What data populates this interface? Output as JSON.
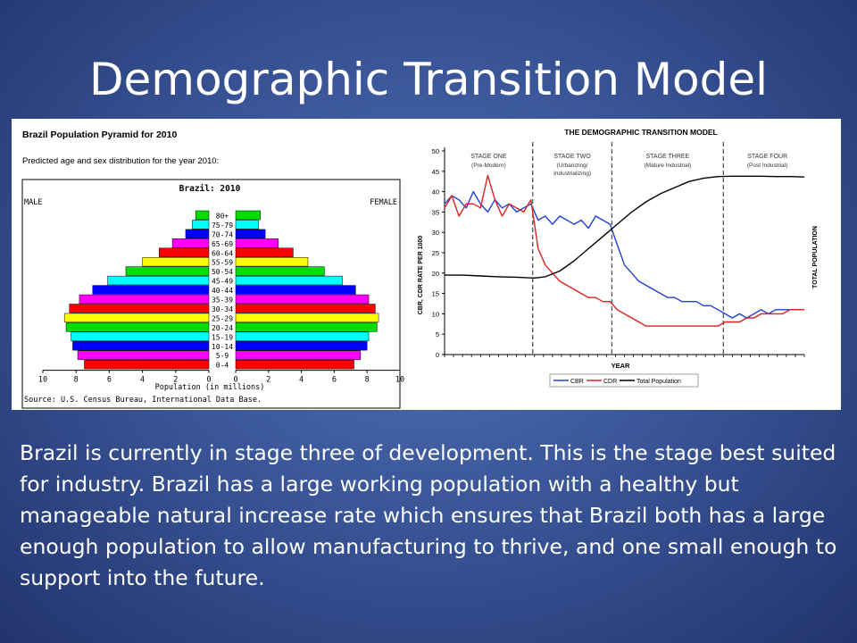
{
  "slide": {
    "title": "Demographic Transition Model",
    "body": "Brazil is currently in stage three of development. This is the stage best suited for industry. Brazil has a large working population with a healthy but manageable natural increase rate which ensures that Brazil both has a large enough population to allow manufacturing to thrive, and one small enough to support into the future."
  },
  "colors": {
    "cbr": "#2040d0",
    "cdr": "#e02020",
    "total": "#000000"
  },
  "chart_data": [
    {
      "type": "bar",
      "title": "Brazil Population Pyramid for 2010",
      "subtitle": "Predicted age and sex distribution for the year 2010:",
      "inner_title": "Brazil: 2010",
      "left_label": "MALE",
      "right_label": "FEMALE",
      "xlabel": "Population (in millions)",
      "source": "Source: U.S. Census Bureau, International Data Base.",
      "xlim": [
        0,
        10
      ],
      "ticks": [
        "10",
        "8",
        "6",
        "4",
        "2",
        "0",
        "0",
        "2",
        "4",
        "6",
        "8",
        "10"
      ],
      "categories": [
        "80+",
        "75-79",
        "70-74",
        "65-69",
        "60-64",
        "55-59",
        "50-54",
        "45-49",
        "40-44",
        "35-39",
        "30-34",
        "25-29",
        "20-24",
        "15-19",
        "10-14",
        "5-9",
        "0-4"
      ],
      "bar_colors": [
        "#00dd00",
        "#00ffff",
        "#0000ff",
        "#ff00ff",
        "#ff0000",
        "#ffff00",
        "#00dd00",
        "#00ffff",
        "#0000ff",
        "#ff00ff",
        "#ff0000",
        "#ffff00",
        "#00dd00",
        "#00ffff",
        "#0000ff",
        "#ff00ff",
        "#ff0000"
      ],
      "series": [
        {
          "name": "MALE",
          "values": [
            0.8,
            1.0,
            1.4,
            2.2,
            3.0,
            4.0,
            5.0,
            6.1,
            7.0,
            7.8,
            8.4,
            8.7,
            8.6,
            8.3,
            8.2,
            7.9,
            7.5
          ]
        },
        {
          "name": "FEMALE",
          "values": [
            1.5,
            1.4,
            1.8,
            2.6,
            3.5,
            4.4,
            5.4,
            6.5,
            7.3,
            8.1,
            8.5,
            8.7,
            8.6,
            8.1,
            8.0,
            7.6,
            7.2
          ]
        }
      ]
    },
    {
      "type": "line",
      "title": "THE DEMOGRAPHIC TRANSITION MODEL",
      "xlabel": "YEAR",
      "ylabel": "CBR, CDR RATE PER 1000",
      "ylabel_right": "TOTAL POPULATION",
      "ylim": [
        0,
        50
      ],
      "yticks": [
        0,
        5,
        10,
        15,
        20,
        25,
        30,
        35,
        40,
        45,
        50
      ],
      "x_range": [
        0,
        100
      ],
      "stage_boundaries": [
        24.5,
        46.5,
        77.5
      ],
      "stages": [
        {
          "name": "STAGE ONE",
          "desc": [
            "(Pre-Modern)"
          ]
        },
        {
          "name": "STAGE TWO",
          "desc": [
            "(Urbanizing/",
            "Industrializing)"
          ]
        },
        {
          "name": "STAGE THREE",
          "desc": [
            "(Mature Industrial)"
          ]
        },
        {
          "name": "STAGE FOUR",
          "desc": [
            "(Post Industrial)"
          ]
        }
      ],
      "legend": [
        "CBR",
        "CDR",
        "Total Population"
      ],
      "series": [
        {
          "name": "CBR",
          "x": [
            0,
            2,
            4,
            6,
            8,
            10,
            12,
            14,
            16,
            18,
            20,
            22,
            24,
            26,
            28,
            30,
            32,
            34,
            36,
            38,
            40,
            42,
            44,
            46,
            48,
            50,
            52,
            54,
            56,
            58,
            60,
            62,
            64,
            66,
            68,
            70,
            72,
            74,
            76,
            78,
            80,
            82,
            84,
            86,
            88,
            90,
            92,
            94,
            96,
            98,
            100
          ],
          "y": [
            37,
            39,
            38,
            36,
            40,
            37,
            35,
            38,
            36,
            37,
            35,
            36,
            37,
            33,
            34,
            32,
            34,
            33,
            32,
            33,
            31,
            34,
            33,
            32,
            27,
            22,
            20,
            18,
            17,
            16,
            15,
            14,
            14,
            13,
            13,
            13,
            12,
            12,
            11,
            10,
            9,
            10,
            9,
            10,
            11,
            10,
            11,
            11,
            11,
            11,
            11
          ]
        },
        {
          "name": "CDR",
          "x": [
            0,
            2,
            4,
            6,
            8,
            10,
            12,
            14,
            16,
            18,
            20,
            22,
            24,
            26,
            28,
            30,
            32,
            34,
            36,
            38,
            40,
            42,
            44,
            46,
            48,
            50,
            52,
            54,
            56,
            58,
            60,
            62,
            64,
            66,
            68,
            70,
            72,
            74,
            76,
            78,
            80,
            82,
            84,
            86,
            88,
            90,
            92,
            94,
            96,
            98,
            100
          ],
          "y": [
            36,
            39,
            34,
            37,
            37,
            36,
            44,
            38,
            34,
            37,
            36,
            35,
            38,
            26,
            22,
            20,
            18,
            17,
            16,
            15,
            14,
            14,
            13,
            13,
            11,
            10,
            9,
            8,
            7,
            7,
            7,
            7,
            7,
            7,
            7,
            7,
            7,
            7,
            7,
            8,
            8,
            8,
            9,
            9,
            10,
            10,
            10,
            10,
            11,
            11,
            11
          ]
        },
        {
          "name": "Total Population",
          "x": [
            0,
            5,
            10,
            15,
            20,
            25,
            28,
            32,
            36,
            40,
            44,
            48,
            52,
            56,
            60,
            64,
            68,
            72,
            76,
            80,
            84,
            88,
            92,
            96,
            100
          ],
          "y": [
            19.5,
            19.5,
            19.3,
            19.1,
            19.0,
            18.8,
            19.1,
            20.5,
            23,
            26,
            29,
            32,
            35,
            37.5,
            39.5,
            41,
            42.5,
            43.3,
            43.7,
            43.8,
            43.8,
            43.8,
            43.7,
            43.7,
            43.6
          ]
        }
      ]
    }
  ]
}
